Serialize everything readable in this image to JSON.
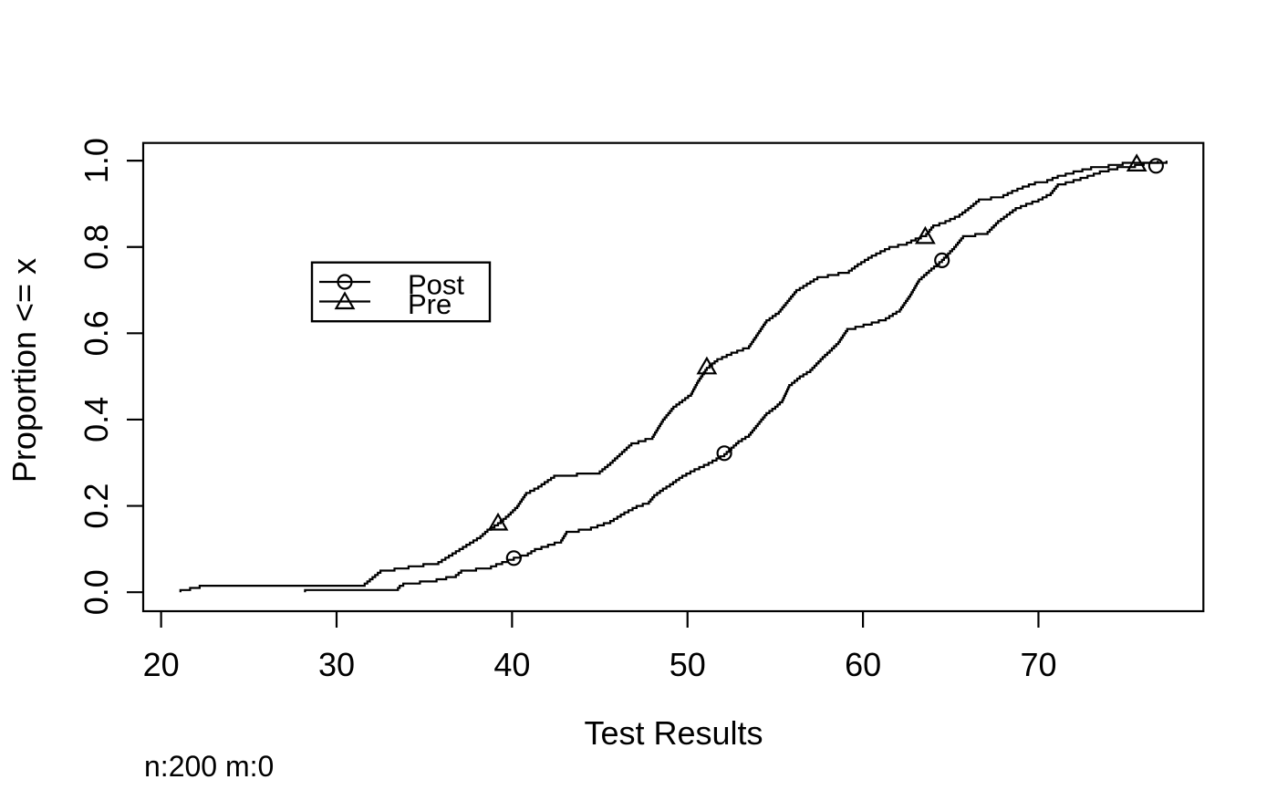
{
  "figure": {
    "background": "#ffffff",
    "foreground": "#000000"
  },
  "chart_data": {
    "type": "line",
    "chart_kind": "ecdf-step",
    "title": "",
    "xlabel": "Test Results",
    "ylabel": "Proportion <= x",
    "subtitle": "n:200 m:0",
    "n": 200,
    "m": 0,
    "grid": false,
    "xlim": [
      18.98,
      79.4
    ],
    "ylim": [
      -0.044,
      1.041
    ],
    "x_ticks": [
      20,
      30,
      40,
      50,
      60,
      70
    ],
    "x_tick_labels": [
      "20",
      "30",
      "40",
      "50",
      "60",
      "70"
    ],
    "y_ticks": [
      0.0,
      0.2,
      0.4,
      0.6,
      0.8,
      1.0
    ],
    "y_tick_labels": [
      "0.0",
      "0.2",
      "0.4",
      "0.6",
      "0.8",
      "1.0"
    ],
    "step_increment": 0.005,
    "line_color": "#000000",
    "legend": {
      "position": "inside-upper-left",
      "labels": [
        "Post",
        "Pre"
      ]
    },
    "series": [
      {
        "name": "Post",
        "marker": "circle",
        "color": "#000000",
        "points": [
          [
            28.2,
            0.005
          ],
          [
            33.5,
            0.01
          ],
          [
            33.6,
            0.015
          ],
          [
            33.8,
            0.02
          ],
          [
            35.7,
            0.03
          ],
          [
            36.8,
            0.04
          ],
          [
            37.1,
            0.05
          ],
          [
            38.8,
            0.06
          ],
          [
            39.1,
            0.065
          ],
          [
            40.1,
            0.08
          ],
          [
            40.9,
            0.09
          ],
          [
            41.3,
            0.1
          ],
          [
            42.8,
            0.12
          ],
          [
            43.1,
            0.14
          ],
          [
            44.5,
            0.15
          ],
          [
            45.6,
            0.165
          ],
          [
            46.0,
            0.175
          ],
          [
            46.4,
            0.185
          ],
          [
            47.1,
            0.2
          ],
          [
            47.8,
            0.21
          ],
          [
            48.1,
            0.225
          ],
          [
            48.6,
            0.24
          ],
          [
            49.0,
            0.25
          ],
          [
            49.7,
            0.27
          ],
          [
            50.4,
            0.285
          ],
          [
            51.2,
            0.3
          ],
          [
            52.1,
            0.32
          ],
          [
            52.9,
            0.35
          ],
          [
            53.5,
            0.365
          ],
          [
            53.9,
            0.385
          ],
          [
            54.5,
            0.415
          ],
          [
            55.0,
            0.43
          ],
          [
            55.4,
            0.445
          ],
          [
            55.8,
            0.48
          ],
          [
            56.4,
            0.5
          ],
          [
            57.0,
            0.515
          ],
          [
            57.7,
            0.545
          ],
          [
            58.1,
            0.56
          ],
          [
            58.6,
            0.58
          ],
          [
            59.1,
            0.61
          ],
          [
            60.5,
            0.625
          ],
          [
            61.3,
            0.635
          ],
          [
            62.1,
            0.655
          ],
          [
            62.7,
            0.69
          ],
          [
            63.2,
            0.725
          ],
          [
            63.9,
            0.75
          ],
          [
            64.5,
            0.77
          ],
          [
            65.2,
            0.8
          ],
          [
            65.7,
            0.825
          ],
          [
            67.1,
            0.835
          ],
          [
            67.7,
            0.86
          ],
          [
            68.7,
            0.89
          ],
          [
            69.3,
            0.9
          ],
          [
            70.0,
            0.91
          ],
          [
            70.7,
            0.925
          ],
          [
            71.1,
            0.945
          ],
          [
            72.0,
            0.955
          ],
          [
            72.8,
            0.965
          ],
          [
            73.5,
            0.975
          ],
          [
            74.5,
            0.985
          ],
          [
            75.5,
            0.99
          ],
          [
            76.0,
            0.995
          ],
          [
            77.3,
            1.0
          ]
        ],
        "marker_points": [
          [
            40.1,
            0.079
          ],
          [
            52.1,
            0.322
          ],
          [
            64.5,
            0.769
          ],
          [
            76.7,
            0.988
          ]
        ]
      },
      {
        "name": "Pre",
        "marker": "triangle",
        "color": "#000000",
        "points": [
          [
            21.1,
            0.005
          ],
          [
            22.2,
            0.015
          ],
          [
            31.6,
            0.02
          ],
          [
            31.9,
            0.03
          ],
          [
            32.2,
            0.04
          ],
          [
            32.5,
            0.05
          ],
          [
            34.1,
            0.06
          ],
          [
            35.8,
            0.07
          ],
          [
            36.2,
            0.08
          ],
          [
            36.6,
            0.09
          ],
          [
            37.0,
            0.1
          ],
          [
            37.4,
            0.11
          ],
          [
            37.8,
            0.12
          ],
          [
            38.2,
            0.13
          ],
          [
            38.6,
            0.145
          ],
          [
            39.2,
            0.16
          ],
          [
            39.8,
            0.18
          ],
          [
            40.3,
            0.2
          ],
          [
            40.8,
            0.23
          ],
          [
            41.5,
            0.245
          ],
          [
            42.4,
            0.27
          ],
          [
            45.0,
            0.28
          ],
          [
            45.3,
            0.29
          ],
          [
            45.6,
            0.3
          ],
          [
            46.0,
            0.315
          ],
          [
            46.4,
            0.33
          ],
          [
            46.8,
            0.345
          ],
          [
            48.0,
            0.36
          ],
          [
            48.3,
            0.38
          ],
          [
            48.6,
            0.4
          ],
          [
            49.2,
            0.43
          ],
          [
            50.2,
            0.46
          ],
          [
            50.6,
            0.49
          ],
          [
            51.1,
            0.52
          ],
          [
            51.7,
            0.54
          ],
          [
            52.5,
            0.555
          ],
          [
            53.5,
            0.57
          ],
          [
            54.0,
            0.6
          ],
          [
            54.5,
            0.63
          ],
          [
            55.2,
            0.65
          ],
          [
            55.6,
            0.67
          ],
          [
            56.2,
            0.7
          ],
          [
            57.4,
            0.73
          ],
          [
            59.2,
            0.745
          ],
          [
            59.7,
            0.76
          ],
          [
            60.5,
            0.78
          ],
          [
            61.5,
            0.8
          ],
          [
            62.5,
            0.81
          ],
          [
            63.0,
            0.82
          ],
          [
            63.6,
            0.83
          ],
          [
            64.0,
            0.85
          ],
          [
            64.7,
            0.86
          ],
          [
            65.5,
            0.875
          ],
          [
            66.0,
            0.89
          ],
          [
            66.6,
            0.91
          ],
          [
            68.0,
            0.92
          ],
          [
            68.5,
            0.93
          ],
          [
            69.1,
            0.94
          ],
          [
            69.8,
            0.95
          ],
          [
            70.5,
            0.955
          ],
          [
            71.1,
            0.965
          ],
          [
            72.0,
            0.975
          ],
          [
            73.0,
            0.985
          ],
          [
            74.0,
            0.99
          ],
          [
            74.8,
            0.995
          ],
          [
            76.8,
            1.0
          ]
        ],
        "marker_points": [
          [
            39.2,
            0.161
          ],
          [
            51.1,
            0.523
          ],
          [
            63.55,
            0.825
          ],
          [
            75.6,
            0.993
          ]
        ]
      }
    ]
  }
}
